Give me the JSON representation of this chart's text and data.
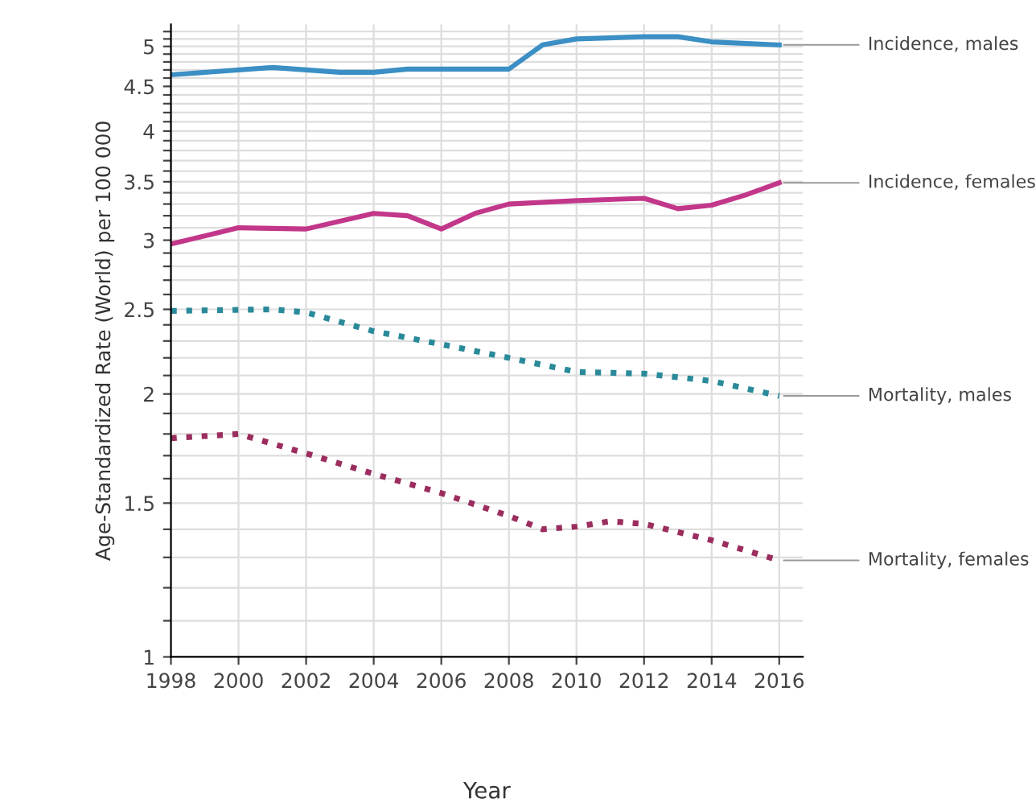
{
  "chart_data": {
    "type": "line",
    "xlabel": "Year",
    "ylabel": "Age-Standardized Rate (World) per 100 000",
    "log": "y",
    "grid": true,
    "legend": false,
    "xlim": [
      1998,
      2016.7
    ],
    "xticks": [
      1998,
      2000,
      2002,
      2004,
      2006,
      2008,
      2010,
      2012,
      2014,
      2016
    ],
    "ylim": [
      1,
      5.3
    ],
    "yticks": [
      1,
      {
        "value": 1.1,
        "label": null
      },
      {
        "value": 1.2,
        "label": null
      },
      {
        "value": 1.3,
        "label": null
      },
      {
        "value": 1.4,
        "label": null
      },
      1.5,
      {
        "value": 1.6,
        "label": null
      },
      {
        "value": 1.7,
        "label": null
      },
      {
        "value": 1.8,
        "label": null
      },
      {
        "value": 1.9,
        "label": null
      },
      2,
      {
        "value": 2.1,
        "label": null
      },
      {
        "value": 2.2,
        "label": null
      },
      {
        "value": 2.3,
        "label": null
      },
      {
        "value": 2.4,
        "label": null
      },
      2.5,
      {
        "value": 2.6,
        "label": null
      },
      {
        "value": 2.7,
        "label": null
      },
      {
        "value": 2.8,
        "label": null
      },
      {
        "value": 2.9,
        "label": null
      },
      3,
      {
        "value": 3.1,
        "label": null
      },
      {
        "value": 3.2,
        "label": null
      },
      {
        "value": 3.3,
        "label": null
      },
      {
        "value": 3.4,
        "label": null
      },
      3.5,
      {
        "value": 3.6,
        "label": null
      },
      {
        "value": 3.7,
        "label": null
      },
      {
        "value": 3.8,
        "label": null
      },
      {
        "value": 3.9,
        "label": null
      },
      4,
      {
        "value": 4.1,
        "label": null
      },
      {
        "value": 4.2,
        "label": null
      },
      {
        "value": 4.3,
        "label": null
      },
      {
        "value": 4.4,
        "label": null
      },
      4.5,
      {
        "value": 4.6,
        "label": null
      },
      {
        "value": 4.7,
        "label": null
      },
      {
        "value": 4.8,
        "label": null
      },
      {
        "value": 4.9,
        "label": null
      },
      5,
      {
        "value": 5.1,
        "label": null
      },
      {
        "value": 5.2,
        "label": null
      }
    ],
    "series": [
      {
        "name": "Incidence, males",
        "color": "#3b8fc4",
        "line_style": "solid",
        "x": [
          1998,
          2001,
          2003,
          2004,
          2005,
          2008,
          2009,
          2010,
          2012,
          2013,
          2014,
          2016
        ],
        "values": [
          4.64,
          4.73,
          4.67,
          4.67,
          4.71,
          4.71,
          5.02,
          5.1,
          5.13,
          5.13,
          5.06,
          5.02
        ]
      },
      {
        "name": "Incidence, females",
        "color": "#c2378a",
        "line_style": "solid",
        "x": [
          1998,
          2000,
          2002,
          2004,
          2005,
          2006,
          2007,
          2008,
          2010,
          2012,
          2013,
          2014,
          2015,
          2016
        ],
        "values": [
          2.97,
          3.1,
          3.09,
          3.22,
          3.2,
          3.09,
          3.22,
          3.3,
          3.33,
          3.35,
          3.26,
          3.29,
          3.38,
          3.49
        ]
      },
      {
        "name": "Mortality, males",
        "color": "#2a8a9a",
        "line_style": "dotted",
        "x": [
          1998,
          2001,
          2002,
          2004,
          2006,
          2008,
          2010,
          2012,
          2014,
          2016
        ],
        "values": [
          2.49,
          2.5,
          2.48,
          2.36,
          2.28,
          2.2,
          2.12,
          2.11,
          2.07,
          1.99
        ]
      },
      {
        "name": "Mortality, females",
        "color": "#9b2d5e",
        "line_style": "dotted",
        "x": [
          1998,
          2000,
          2002,
          2004,
          2006,
          2008,
          2009,
          2010,
          2011,
          2012,
          2014,
          2016
        ],
        "values": [
          1.78,
          1.8,
          1.71,
          1.62,
          1.54,
          1.45,
          1.4,
          1.41,
          1.43,
          1.42,
          1.36,
          1.29
        ]
      }
    ]
  }
}
